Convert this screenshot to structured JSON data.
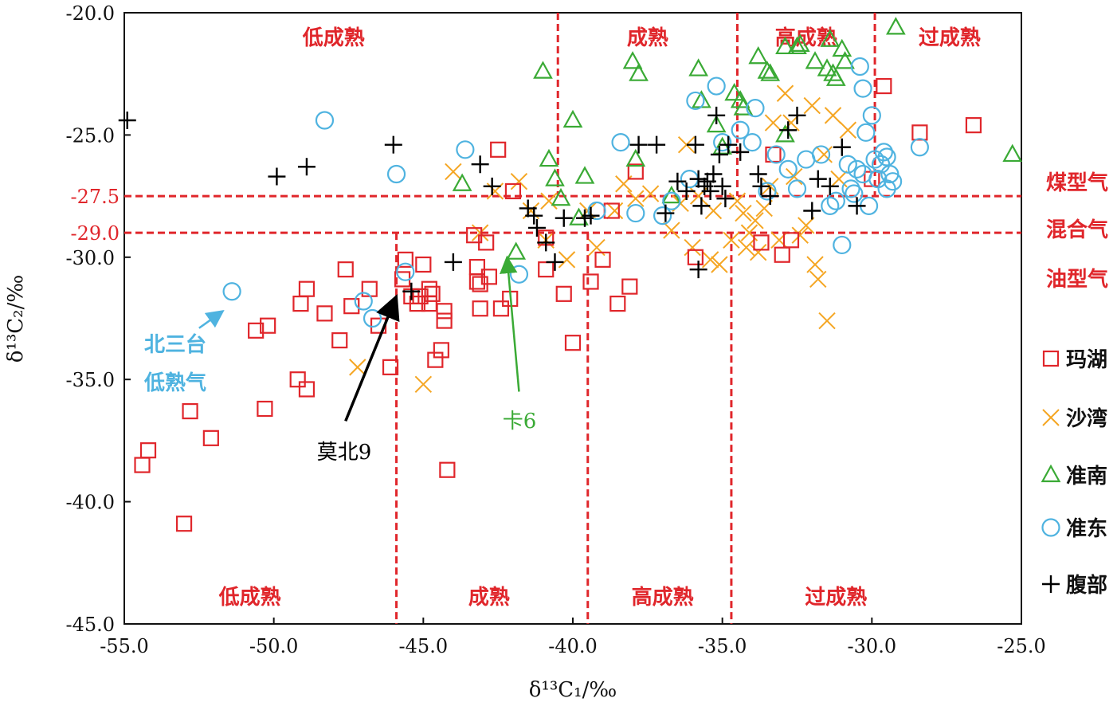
{
  "chart_data": {
    "type": "scatter",
    "xlabel": "δ¹³C₁/‰",
    "ylabel": "δ¹³C₂/‰",
    "xlim": [
      -55.0,
      -25.0
    ],
    "ylim": [
      -45.0,
      -20.0
    ],
    "x_ticks": [
      -55.0,
      -50.0,
      -45.0,
      -40.0,
      -35.0,
      -30.0,
      -25.0
    ],
    "x_tick_labels": [
      "-55.0",
      "-50.0",
      "-45.0",
      "-40.0",
      "-35.0",
      "-30.0",
      "-25.0"
    ],
    "y_ticks": [
      -45.0,
      -40.0,
      -35.0,
      -30.0,
      -25.0,
      -20.0
    ],
    "y_tick_labels": [
      "-45.0",
      "-40.0",
      "-35.0",
      "-30.0",
      "-25.0",
      "-20.0"
    ],
    "grid": false,
    "legend_position": "right",
    "colors": {
      "reference": "#e0262b",
      "玛湖": "#e0262b",
      "沙湾": "#f5a623",
      "准南": "#3aaa35",
      "准东": "#4fb3e0",
      "腹部": "#000000"
    },
    "reference_lines": {
      "horizontal": [
        {
          "y": -27.5,
          "label": "-27.5"
        },
        {
          "y": -29.0,
          "label": "-29.0"
        }
      ],
      "vertical_upper": [
        -40.5,
        -34.5,
        -29.9
      ],
      "vertical_lower": [
        -45.9,
        -39.5,
        -34.7
      ],
      "upper_zones": [
        {
          "label": "低成熟",
          "x": -48.0
        },
        {
          "label": "成熟",
          "x": -37.5
        },
        {
          "label": "高成熟",
          "x": -32.2
        },
        {
          "label": "过成熟",
          "x": -27.4
        }
      ],
      "lower_zones": [
        {
          "label": "低成熟",
          "x": -50.8
        },
        {
          "label": "成熟",
          "x": -42.8
        },
        {
          "label": "高成熟",
          "x": -37.0
        },
        {
          "label": "过成熟",
          "x": -31.2
        }
      ],
      "gas_types": [
        "煤型气",
        "混合气",
        "油型气"
      ]
    },
    "annotations": [
      {
        "label": "北三台",
        "label2": "低熟气",
        "color": "#4fb3e0",
        "target": [
          -51.7,
          -32.2
        ],
        "from": [
          -52.5,
          -32.9
        ]
      },
      {
        "label": "莫北9",
        "color": "#000000",
        "target": [
          -45.9,
          -31.6
        ],
        "from": [
          -47.6,
          -36.7
        ]
      },
      {
        "label": "卡6",
        "color": "#3aaa35",
        "target": [
          -42.2,
          -30.0
        ],
        "from": [
          -41.8,
          -35.5
        ]
      }
    ],
    "series": [
      {
        "name": "玛湖",
        "marker": "square",
        "points": [
          [
            -54.4,
            -38.5
          ],
          [
            -54.2,
            -37.9
          ],
          [
            -53.0,
            -40.9
          ],
          [
            -52.8,
            -36.3
          ],
          [
            -52.1,
            -37.4
          ],
          [
            -50.6,
            -33.0
          ],
          [
            -50.2,
            -32.8
          ],
          [
            -50.3,
            -36.2
          ],
          [
            -49.2,
            -35.0
          ],
          [
            -49.1,
            -31.9
          ],
          [
            -48.9,
            -31.3
          ],
          [
            -48.9,
            -35.4
          ],
          [
            -48.3,
            -32.3
          ],
          [
            -47.8,
            -33.4
          ],
          [
            -47.6,
            -30.5
          ],
          [
            -47.4,
            -32.0
          ],
          [
            -46.8,
            -31.3
          ],
          [
            -46.5,
            -32.8
          ],
          [
            -46.1,
            -34.5
          ],
          [
            -45.7,
            -30.9
          ],
          [
            -45.6,
            -30.1
          ],
          [
            -45.4,
            -31.6
          ],
          [
            -45.2,
            -31.9
          ],
          [
            -45.1,
            -31.6
          ],
          [
            -45.0,
            -30.3
          ],
          [
            -44.8,
            -31.3
          ],
          [
            -44.8,
            -31.9
          ],
          [
            -44.7,
            -31.5
          ],
          [
            -44.6,
            -34.2
          ],
          [
            -44.4,
            -33.8
          ],
          [
            -44.3,
            -32.2
          ],
          [
            -44.3,
            -32.6
          ],
          [
            -44.2,
            -38.7
          ],
          [
            -43.3,
            -29.1
          ],
          [
            -43.2,
            -30.4
          ],
          [
            -43.2,
            -31.0
          ],
          [
            -43.1,
            -31.1
          ],
          [
            -43.1,
            -32.1
          ],
          [
            -42.8,
            -30.8
          ],
          [
            -42.9,
            -29.4
          ],
          [
            -42.5,
            -25.6
          ],
          [
            -42.4,
            -32.1
          ],
          [
            -42.1,
            -31.7
          ],
          [
            -42.0,
            -27.3
          ],
          [
            -40.9,
            -29.2
          ],
          [
            -40.9,
            -30.5
          ],
          [
            -40.3,
            -31.5
          ],
          [
            -40.0,
            -33.5
          ],
          [
            -39.4,
            -31.0
          ],
          [
            -39.0,
            -30.1
          ],
          [
            -38.7,
            -28.1
          ],
          [
            -38.5,
            -31.9
          ],
          [
            -38.1,
            -31.2
          ],
          [
            -37.9,
            -26.5
          ],
          [
            -35.9,
            -30.0
          ],
          [
            -33.7,
            -29.4
          ],
          [
            -33.3,
            -25.8
          ],
          [
            -33.0,
            -29.9
          ],
          [
            -32.7,
            -29.3
          ],
          [
            -30.0,
            -26.8
          ],
          [
            -29.6,
            -23.0
          ],
          [
            -28.4,
            -24.9
          ],
          [
            -26.6,
            -24.6
          ]
        ]
      },
      {
        "name": "沙湾",
        "marker": "x",
        "points": [
          [
            -47.2,
            -34.5
          ],
          [
            -45.0,
            -35.2
          ],
          [
            -44.0,
            -26.5
          ],
          [
            -43.1,
            -29.0
          ],
          [
            -42.6,
            -27.3
          ],
          [
            -41.8,
            -26.9
          ],
          [
            -41.4,
            -28.1
          ],
          [
            -40.9,
            -29.3
          ],
          [
            -40.8,
            -27.7
          ],
          [
            -40.2,
            -30.1
          ],
          [
            -39.5,
            -28.1
          ],
          [
            -39.2,
            -29.6
          ],
          [
            -38.6,
            -28.1
          ],
          [
            -38.3,
            -27.0
          ],
          [
            -37.9,
            -27.6
          ],
          [
            -37.4,
            -27.4
          ],
          [
            -36.7,
            -28.9
          ],
          [
            -36.4,
            -27.8
          ],
          [
            -36.2,
            -25.4
          ],
          [
            -36.0,
            -29.6
          ],
          [
            -35.8,
            -27.5
          ],
          [
            -35.4,
            -30.1
          ],
          [
            -35.3,
            -28.1
          ],
          [
            -35.1,
            -30.3
          ],
          [
            -34.7,
            -29.3
          ],
          [
            -34.5,
            -27.7
          ],
          [
            -34.3,
            -28.2
          ],
          [
            -34.2,
            -29.6
          ],
          [
            -34.1,
            -29.0
          ],
          [
            -33.9,
            -28.5
          ],
          [
            -33.8,
            -29.8
          ],
          [
            -33.6,
            -28.0
          ],
          [
            -33.4,
            -27.1
          ],
          [
            -33.3,
            -24.5
          ],
          [
            -33.1,
            -29.3
          ],
          [
            -32.9,
            -23.3
          ],
          [
            -32.7,
            -24.5
          ],
          [
            -32.6,
            -26.7
          ],
          [
            -32.4,
            -29.1
          ],
          [
            -32.2,
            -28.7
          ],
          [
            -32.0,
            -23.8
          ],
          [
            -31.9,
            -30.3
          ],
          [
            -31.8,
            -30.9
          ],
          [
            -31.6,
            -25.8
          ],
          [
            -31.5,
            -32.6
          ],
          [
            -31.3,
            -24.2
          ],
          [
            -31.1,
            -26.8
          ],
          [
            -30.8,
            -24.8
          ]
        ]
      },
      {
        "name": "准南",
        "marker": "triangle",
        "points": [
          [
            -43.7,
            -27.0
          ],
          [
            -41.9,
            -29.8
          ],
          [
            -41.0,
            -22.4
          ],
          [
            -40.8,
            -26.0
          ],
          [
            -40.6,
            -26.8
          ],
          [
            -40.4,
            -27.6
          ],
          [
            -40.0,
            -24.4
          ],
          [
            -39.8,
            -28.4
          ],
          [
            -39.6,
            -26.7
          ],
          [
            -38.0,
            -22.0
          ],
          [
            -37.8,
            -22.5
          ],
          [
            -37.9,
            -26.0
          ],
          [
            -36.7,
            -27.5
          ],
          [
            -35.8,
            -22.3
          ],
          [
            -35.7,
            -23.6
          ],
          [
            -35.2,
            -24.6
          ],
          [
            -35.0,
            -25.5
          ],
          [
            -34.6,
            -23.3
          ],
          [
            -34.4,
            -23.6
          ],
          [
            -34.3,
            -23.9
          ],
          [
            -33.8,
            -21.8
          ],
          [
            -33.5,
            -22.4
          ],
          [
            -33.4,
            -22.5
          ],
          [
            -32.9,
            -21.4
          ],
          [
            -32.5,
            -21.4
          ],
          [
            -32.4,
            -21.3
          ],
          [
            -31.9,
            -22.0
          ],
          [
            -31.5,
            -22.3
          ],
          [
            -31.4,
            -21.1
          ],
          [
            -31.3,
            -22.5
          ],
          [
            -31.2,
            -22.7
          ],
          [
            -31.0,
            -21.5
          ],
          [
            -30.9,
            -22.0
          ],
          [
            -32.9,
            -25.0
          ],
          [
            -29.2,
            -20.6
          ],
          [
            -25.3,
            -25.8
          ]
        ]
      },
      {
        "name": "准东",
        "marker": "circle",
        "points": [
          [
            -51.4,
            -31.4
          ],
          [
            -48.3,
            -24.4
          ],
          [
            -47.0,
            -31.8
          ],
          [
            -46.7,
            -32.5
          ],
          [
            -45.9,
            -26.6
          ],
          [
            -45.6,
            -30.6
          ],
          [
            -43.6,
            -25.6
          ],
          [
            -41.8,
            -30.7
          ],
          [
            -39.2,
            -28.1
          ],
          [
            -38.4,
            -25.3
          ],
          [
            -37.9,
            -28.2
          ],
          [
            -37.0,
            -28.3
          ],
          [
            -36.7,
            -27.7
          ],
          [
            -36.1,
            -26.8
          ],
          [
            -35.9,
            -23.6
          ],
          [
            -35.2,
            -23.0
          ],
          [
            -35.0,
            -25.3
          ],
          [
            -34.4,
            -24.8
          ],
          [
            -34.0,
            -25.3
          ],
          [
            -33.9,
            -23.9
          ],
          [
            -33.5,
            -27.3
          ],
          [
            -33.2,
            -25.8
          ],
          [
            -32.8,
            -26.4
          ],
          [
            -32.5,
            -27.2
          ],
          [
            -32.2,
            -26.0
          ],
          [
            -31.7,
            -25.8
          ],
          [
            -31.4,
            -27.9
          ],
          [
            -31.2,
            -27.7
          ],
          [
            -31.0,
            -29.5
          ],
          [
            -30.7,
            -27.2
          ],
          [
            -30.5,
            -26.4
          ],
          [
            -30.4,
            -22.2
          ],
          [
            -30.3,
            -23.1
          ],
          [
            -30.2,
            -24.9
          ],
          [
            -30.0,
            -24.2
          ],
          [
            -29.9,
            -26.0
          ],
          [
            -29.8,
            -26.8
          ],
          [
            -29.6,
            -25.7
          ],
          [
            -29.5,
            -27.2
          ],
          [
            -29.4,
            -26.6
          ],
          [
            -28.4,
            -25.5
          ],
          [
            -30.8,
            -26.2
          ],
          [
            -30.6,
            -27.4
          ],
          [
            -30.1,
            -27.9
          ],
          [
            -29.7,
            -26.2
          ],
          [
            -29.5,
            -25.9
          ],
          [
            -29.3,
            -26.9
          ],
          [
            -30.3,
            -26.6
          ]
        ]
      },
      {
        "name": "腹部",
        "marker": "plus",
        "points": [
          [
            -54.9,
            -24.4
          ],
          [
            -49.9,
            -26.7
          ],
          [
            -48.9,
            -26.3
          ],
          [
            -46.0,
            -25.4
          ],
          [
            -45.4,
            -31.4
          ],
          [
            -44.0,
            -30.2
          ],
          [
            -43.1,
            -26.2
          ],
          [
            -42.7,
            -27.1
          ],
          [
            -41.5,
            -28.0
          ],
          [
            -41.3,
            -28.3
          ],
          [
            -41.2,
            -28.8
          ],
          [
            -40.9,
            -29.4
          ],
          [
            -40.6,
            -30.2
          ],
          [
            -40.3,
            -28.4
          ],
          [
            -39.6,
            -28.4
          ],
          [
            -39.4,
            -28.3
          ],
          [
            -37.8,
            -25.4
          ],
          [
            -37.2,
            -25.4
          ],
          [
            -36.9,
            -28.2
          ],
          [
            -36.5,
            -26.9
          ],
          [
            -36.2,
            -27.3
          ],
          [
            -35.9,
            -25.4
          ],
          [
            -35.8,
            -26.8
          ],
          [
            -35.6,
            -27.1
          ],
          [
            -35.5,
            -26.9
          ],
          [
            -35.4,
            -27.3
          ],
          [
            -35.3,
            -26.6
          ],
          [
            -35.2,
            -24.2
          ],
          [
            -35.1,
            -25.8
          ],
          [
            -35.0,
            -27.1
          ],
          [
            -34.8,
            -25.4
          ],
          [
            -34.4,
            -25.7
          ],
          [
            -33.8,
            -26.6
          ],
          [
            -33.7,
            -27.1
          ],
          [
            -33.4,
            -27.5
          ],
          [
            -32.8,
            -24.8
          ],
          [
            -32.5,
            -24.2
          ],
          [
            -32.0,
            -28.1
          ],
          [
            -31.8,
            -26.8
          ],
          [
            -31.4,
            -27.1
          ],
          [
            -31.0,
            -25.5
          ],
          [
            -30.5,
            -27.9
          ],
          [
            -35.8,
            -30.5
          ],
          [
            -34.9,
            -27.6
          ],
          [
            -35.7,
            -27.9
          ]
        ]
      }
    ]
  }
}
